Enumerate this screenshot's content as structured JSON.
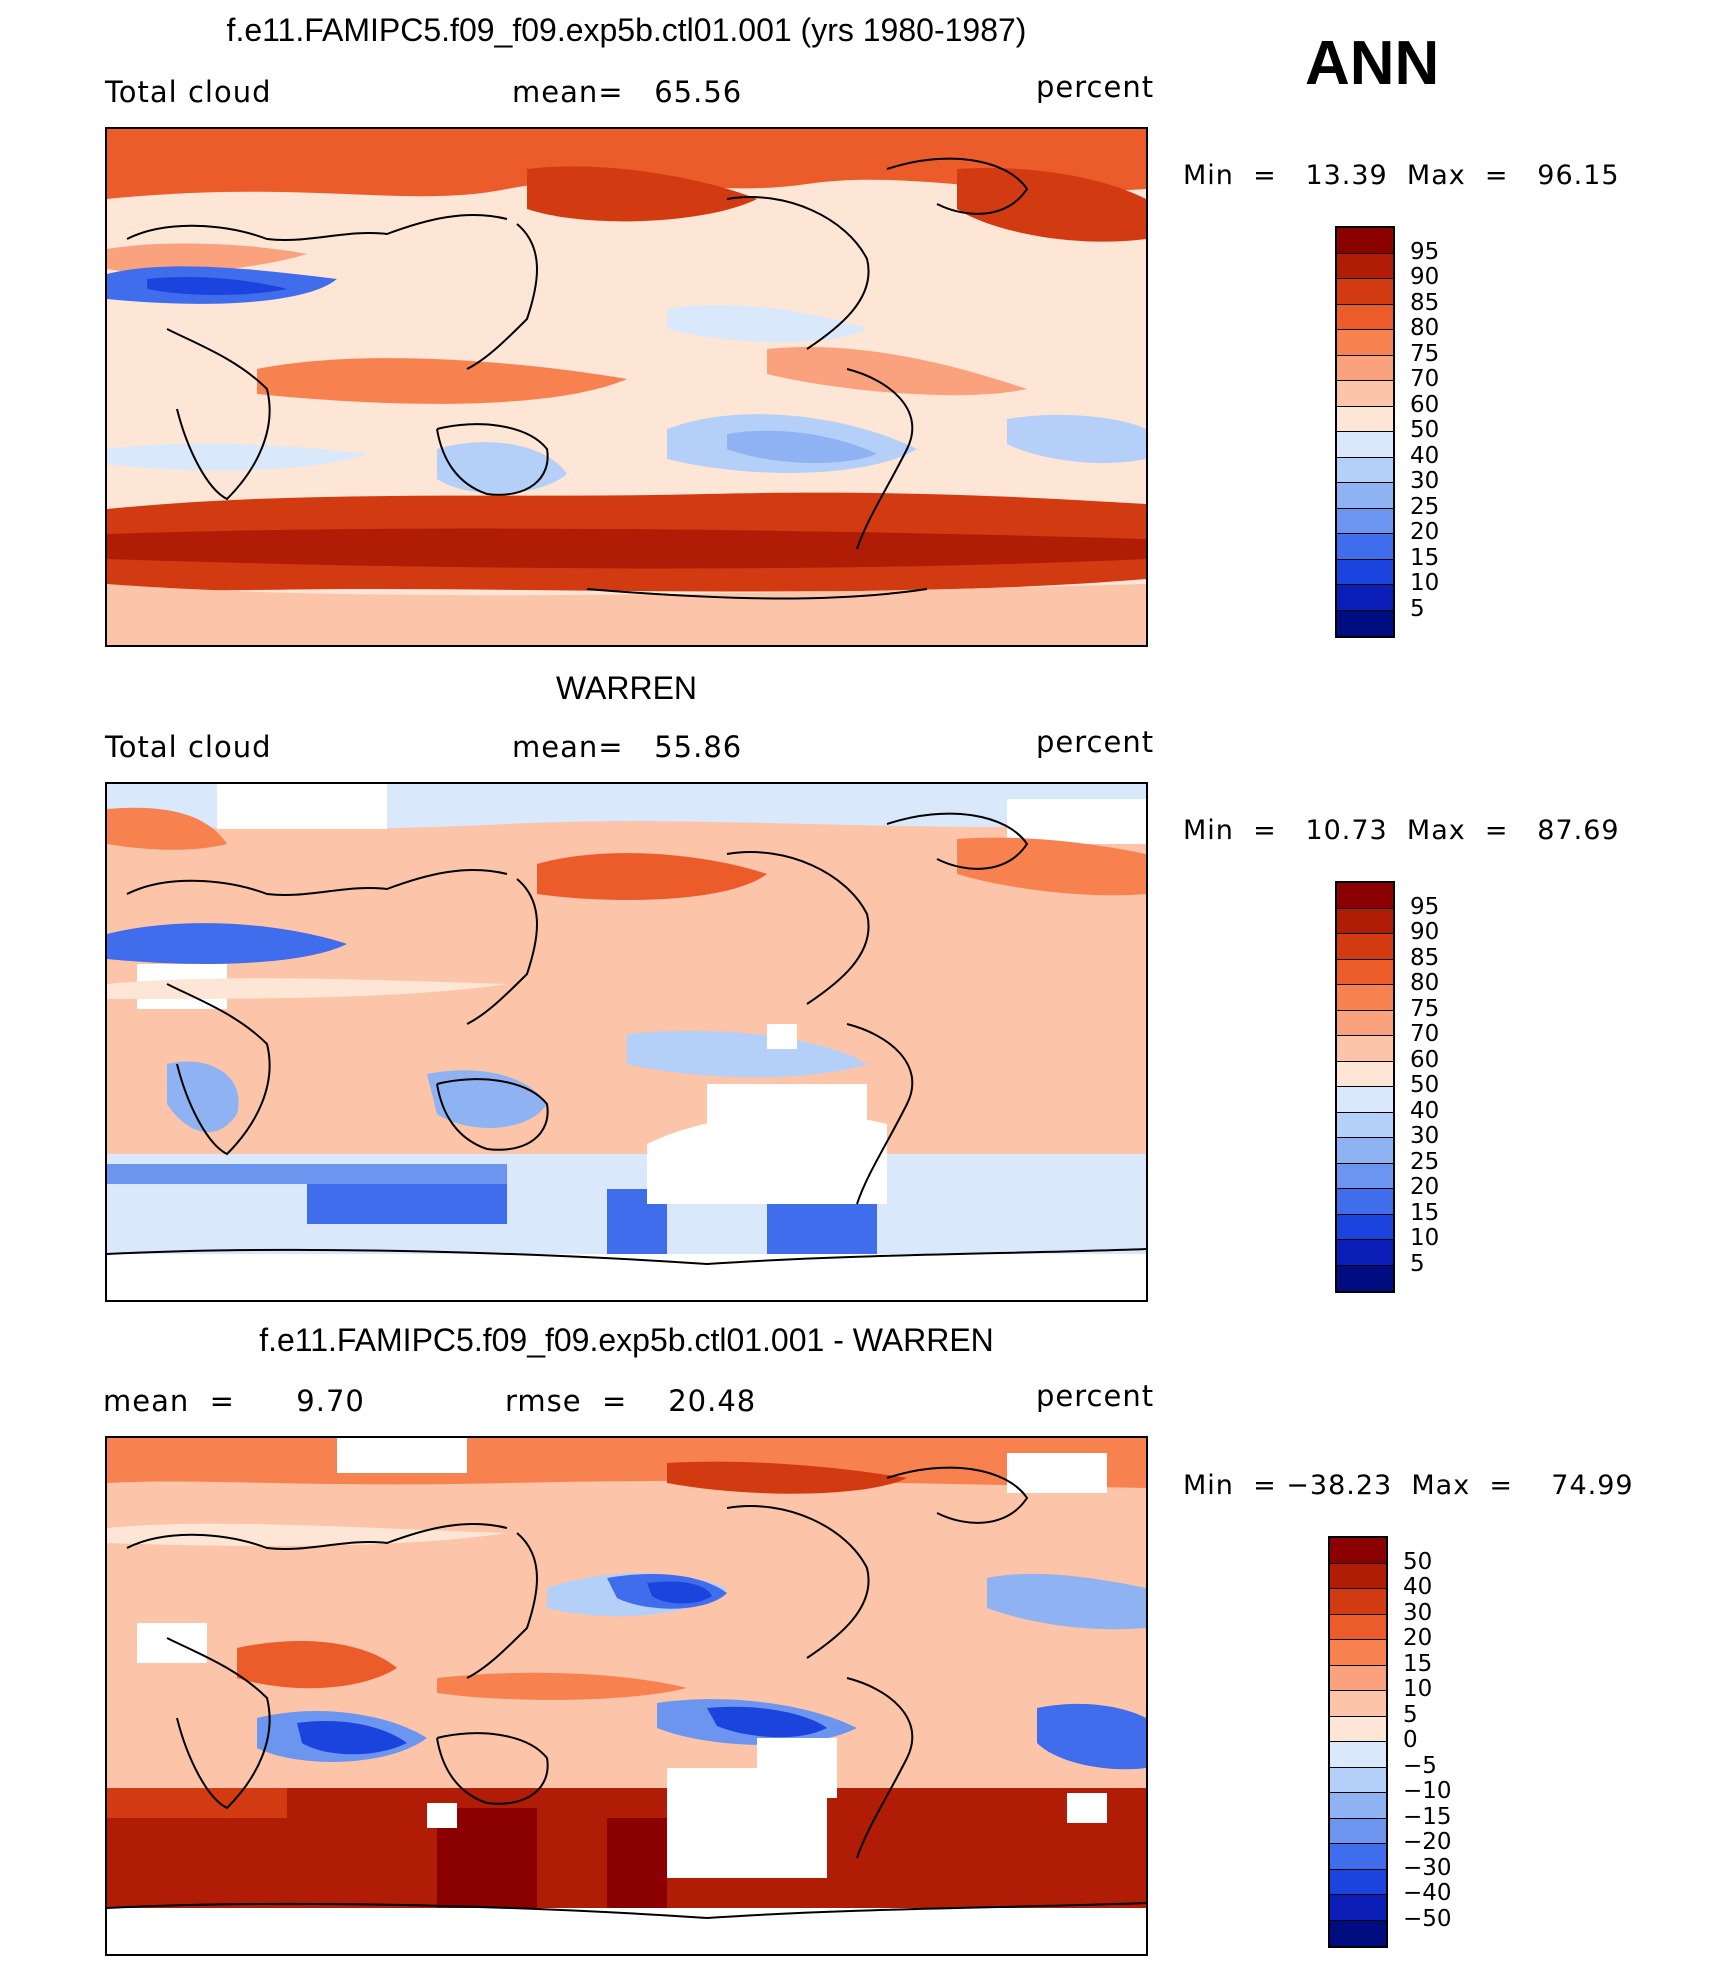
{
  "season": "ANN",
  "panels": [
    {
      "title": "f.e11.FAMIPC5.f09_f09.exp5b.ctl01.001 (yrs 1980-1987)",
      "left_label": "Total cloud",
      "center_label": "mean=   65.56",
      "right_label": "percent",
      "minmax": "Min  =   13.39  Max  =   96.15",
      "colorbar": {
        "levels": [
          "95",
          "90",
          "85",
          "80",
          "75",
          "70",
          "60",
          "50",
          "40",
          "30",
          "25",
          "20",
          "15",
          "10",
          "5"
        ],
        "colors": [
          "#8b0000",
          "#b01c06",
          "#d23a12",
          "#ec5b2a",
          "#f7814f",
          "#faa27d",
          "#fcc4a8",
          "#fde6d6",
          "#d9e8fb",
          "#b5d0f8",
          "#8fb3f2",
          "#6c95ef",
          "#3f6deb",
          "#1a44dd",
          "#0b1fb8",
          "#000d80"
        ]
      }
    },
    {
      "title": "WARREN",
      "left_label": "Total cloud",
      "center_label": "mean=   55.86",
      "right_label": "percent",
      "minmax": "Min  =   10.73  Max  =   87.69",
      "colorbar": {
        "levels": [
          "95",
          "90",
          "85",
          "80",
          "75",
          "70",
          "60",
          "50",
          "40",
          "30",
          "25",
          "20",
          "15",
          "10",
          "5"
        ],
        "colors": [
          "#8b0000",
          "#b01c06",
          "#d23a12",
          "#ec5b2a",
          "#f7814f",
          "#faa27d",
          "#fcc4a8",
          "#fde6d6",
          "#d9e8fb",
          "#b5d0f8",
          "#8fb3f2",
          "#6c95ef",
          "#3f6deb",
          "#1a44dd",
          "#0b1fb8",
          "#000d80"
        ]
      }
    },
    {
      "title": "f.e11.FAMIPC5.f09_f09.exp5b.ctl01.001 - WARREN",
      "left_label": "mean  =      9.70",
      "center_label": "rmse  =    20.48",
      "right_label": "percent",
      "minmax": "Min  = −38.23  Max  =    74.99",
      "colorbar": {
        "levels": [
          "50",
          "40",
          "30",
          "20",
          "15",
          "10",
          "5",
          "0",
          "−5",
          "−10",
          "−15",
          "−20",
          "−30",
          "−40",
          "−50"
        ],
        "colors": [
          "#8b0000",
          "#b01c06",
          "#d23a12",
          "#ec5b2a",
          "#f7814f",
          "#faa27d",
          "#fcc4a8",
          "#fde6d6",
          "#d9e8fb",
          "#b5d0f8",
          "#8fb3f2",
          "#6c95ef",
          "#3f6deb",
          "#1a44dd",
          "#0b1fb8",
          "#000d80"
        ]
      }
    }
  ]
}
